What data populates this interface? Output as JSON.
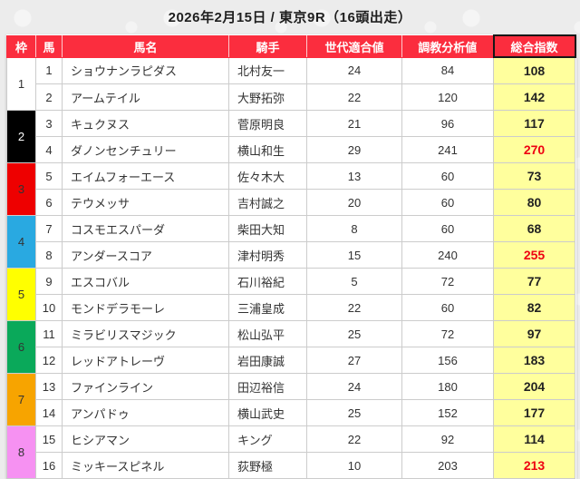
{
  "title": "2026年2月15日 / 東京9R（16頭出走）",
  "colors": {
    "header_bg": "#fb2d3e",
    "total_column_bg": "#ffff9d",
    "highlight_value_red": "#ee0011",
    "page_bg": "#ececec",
    "cell_border": "#cccccc"
  },
  "table": {
    "headers": {
      "waku": "枠",
      "num": "馬",
      "name": "馬名",
      "jockey": "騎手",
      "gen": "世代適合値",
      "training": "調教分析値",
      "total": "総合指数"
    },
    "frames": [
      {
        "no": "1",
        "color": "#ffffff",
        "text_color": "#333333"
      },
      {
        "no": "2",
        "color": "#000000",
        "text_color": "#ffffff"
      },
      {
        "no": "3",
        "color": "#ee0000",
        "text_color": "#333333"
      },
      {
        "no": "4",
        "color": "#29a9e1",
        "text_color": "#333333"
      },
      {
        "no": "5",
        "color": "#ffff00",
        "text_color": "#333333"
      },
      {
        "no": "6",
        "color": "#0aa95a",
        "text_color": "#333333"
      },
      {
        "no": "7",
        "color": "#f7a400",
        "text_color": "#333333"
      },
      {
        "no": "8",
        "color": "#f691f2",
        "text_color": "#333333"
      }
    ],
    "rows": [
      {
        "num": "1",
        "name": "ショウナンラピダス",
        "jockey": "北村友一",
        "gen": "24",
        "training": "84",
        "total": "108",
        "total_red": false
      },
      {
        "num": "2",
        "name": "アームテイル",
        "jockey": "大野拓弥",
        "gen": "22",
        "training": "120",
        "total": "142",
        "total_red": false
      },
      {
        "num": "3",
        "name": "キュクヌス",
        "jockey": "菅原明良",
        "gen": "21",
        "training": "96",
        "total": "117",
        "total_red": false
      },
      {
        "num": "4",
        "name": "ダノンセンチュリー",
        "jockey": "横山和生",
        "gen": "29",
        "training": "241",
        "total": "270",
        "total_red": true
      },
      {
        "num": "5",
        "name": "エイムフォーエース",
        "jockey": "佐々木大",
        "gen": "13",
        "training": "60",
        "total": "73",
        "total_red": false
      },
      {
        "num": "6",
        "name": "テウメッサ",
        "jockey": "吉村誠之",
        "gen": "20",
        "training": "60",
        "total": "80",
        "total_red": false
      },
      {
        "num": "7",
        "name": "コスモエスパーダ",
        "jockey": "柴田大知",
        "gen": "8",
        "training": "60",
        "total": "68",
        "total_red": false
      },
      {
        "num": "8",
        "name": "アンダースコア",
        "jockey": "津村明秀",
        "gen": "15",
        "training": "240",
        "total": "255",
        "total_red": true
      },
      {
        "num": "9",
        "name": "エスコバル",
        "jockey": "石川裕紀",
        "gen": "5",
        "training": "72",
        "total": "77",
        "total_red": false
      },
      {
        "num": "10",
        "name": "モンドデラモーレ",
        "jockey": "三浦皇成",
        "gen": "22",
        "training": "60",
        "total": "82",
        "total_red": false
      },
      {
        "num": "11",
        "name": "ミラビリスマジック",
        "jockey": "松山弘平",
        "gen": "25",
        "training": "72",
        "total": "97",
        "total_red": false
      },
      {
        "num": "12",
        "name": "レッドアトレーヴ",
        "jockey": "岩田康誠",
        "gen": "27",
        "training": "156",
        "total": "183",
        "total_red": false
      },
      {
        "num": "13",
        "name": "ファインライン",
        "jockey": "田辺裕信",
        "gen": "24",
        "training": "180",
        "total": "204",
        "total_red": false
      },
      {
        "num": "14",
        "name": "アンパドゥ",
        "jockey": "横山武史",
        "gen": "25",
        "training": "152",
        "total": "177",
        "total_red": false
      },
      {
        "num": "15",
        "name": "ヒシアマン",
        "jockey": "キング",
        "gen": "22",
        "training": "92",
        "total": "114",
        "total_red": false
      },
      {
        "num": "16",
        "name": "ミッキースピネル",
        "jockey": "荻野極",
        "gen": "10",
        "training": "203",
        "total": "213",
        "total_red": true
      }
    ]
  }
}
